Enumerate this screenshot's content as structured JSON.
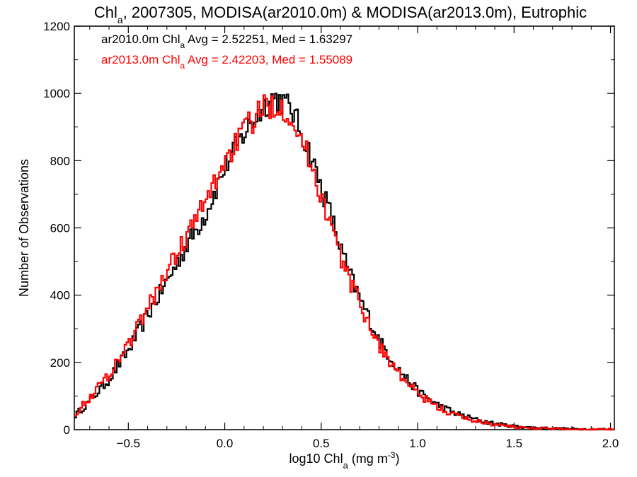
{
  "chart_data": {
    "type": "line",
    "title": {
      "prefix": "Chl",
      "sub": "a",
      "suffix": ", 2007305, MODISA(ar2010.0m) & MODISA(ar2013.0m), Eutrophic"
    },
    "xlabel": {
      "prefix": "log10 Chl",
      "sub": "a",
      "suffix": " (mg m",
      "sup": "-3",
      "close": ")"
    },
    "ylabel": "Number of Observations",
    "xlim": [
      -0.78,
      2.02
    ],
    "ylim": [
      0,
      1200
    ],
    "xticks": [
      -0.5,
      0.0,
      0.5,
      1.0,
      1.5,
      2.0
    ],
    "xtick_labels": [
      "−0.5",
      "0.0",
      "0.5",
      "1.0",
      "1.5",
      "2.0"
    ],
    "yticks": [
      0,
      200,
      400,
      600,
      800,
      1000,
      1200
    ],
    "ytick_labels": [
      "0",
      "200",
      "400",
      "600",
      "800",
      "1000",
      "1200"
    ],
    "stats": [
      {
        "label_prefix": "ar2010.0m Chl",
        "label_sub": "a",
        "label_suffix": " Avg = 2.52251, Med = 1.63297",
        "color": "#000000"
      },
      {
        "label_prefix": "ar2013.0m Chl",
        "label_sub": "a",
        "label_suffix": " Avg = 2.42203, Med = 1.55089",
        "color": "#ff0000"
      }
    ],
    "series": [
      {
        "color": "#000000",
        "x": [
          -0.78,
          -0.7,
          -0.6,
          -0.5,
          -0.4,
          -0.3,
          -0.2,
          -0.1,
          0.0,
          0.1,
          0.2,
          0.25,
          0.3,
          0.35,
          0.4,
          0.45,
          0.5,
          0.55,
          0.6,
          0.65,
          0.7,
          0.75,
          0.8,
          0.9,
          1.0,
          1.1,
          1.2,
          1.3,
          1.4,
          1.5,
          1.6,
          1.7,
          1.8,
          2.02
        ],
        "y": [
          40,
          85,
          150,
          235,
          340,
          440,
          545,
          640,
          780,
          880,
          960,
          990,
          975,
          950,
          880,
          810,
          720,
          640,
          540,
          460,
          390,
          330,
          265,
          180,
          115,
          75,
          48,
          30,
          18,
          10,
          6,
          4,
          2,
          1
        ]
      },
      {
        "color": "#ff0000",
        "x": [
          -0.78,
          -0.7,
          -0.6,
          -0.5,
          -0.4,
          -0.3,
          -0.2,
          -0.1,
          0.0,
          0.1,
          0.2,
          0.25,
          0.3,
          0.35,
          0.4,
          0.45,
          0.5,
          0.55,
          0.6,
          0.65,
          0.7,
          0.75,
          0.8,
          0.9,
          1.0,
          1.1,
          1.2,
          1.3,
          1.4,
          1.5,
          1.6,
          1.7,
          1.8,
          2.02
        ],
        "y": [
          45,
          95,
          165,
          255,
          360,
          470,
          575,
          675,
          800,
          890,
          955,
          970,
          960,
          930,
          855,
          790,
          695,
          610,
          515,
          440,
          375,
          315,
          250,
          168,
          106,
          68,
          42,
          26,
          15,
          8,
          5,
          3,
          1,
          1
        ]
      }
    ]
  }
}
